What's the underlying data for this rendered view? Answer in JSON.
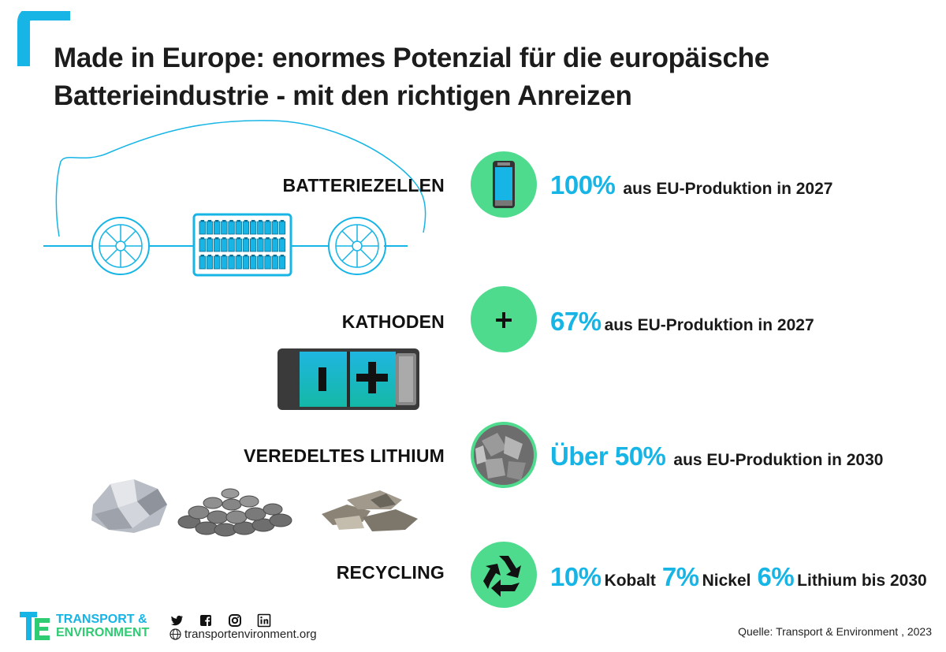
{
  "title": {
    "line1": "Made in Europe: enormes Potenzial für die europäische",
    "line2": "Batterieindustrie - mit den richtigen Anreizen"
  },
  "rows": [
    {
      "label": "BATTERIEZELLEN",
      "big": "100%",
      "text": "aus EU-Produktion in 2027",
      "icon": "battery-cell-icon"
    },
    {
      "label": "KATHODEN",
      "big": "67%",
      "text": "aus EU-Produktion in 2027",
      "icon": "plus-icon"
    },
    {
      "label": "VEREDELTES LITHIUM",
      "big": "Über 50%",
      "text": "aus EU-Produktion in 2030",
      "icon": "lithium-icon"
    },
    {
      "label": "RECYCLING",
      "icon": "recycle-icon",
      "parts": [
        {
          "big": "10%",
          "text": "Kobalt"
        },
        {
          "big": "7%",
          "text": "Nickel"
        },
        {
          "big": "6%",
          "text": "Lithium bis 2030"
        }
      ]
    }
  ],
  "footer": {
    "logo_line1": "TRANSPORT &",
    "logo_line2": "ENVIRONMENT",
    "social_icons": [
      "twitter-icon",
      "facebook-icon",
      "instagram-icon",
      "linkedin-icon"
    ],
    "website": "transportenvironment.org",
    "source": "Quelle: Transport & Environment , 2023"
  },
  "colors": {
    "accent_blue": "#16b5e6",
    "accent_green": "#4fdb8e",
    "logo_green": "#2fcc73"
  }
}
